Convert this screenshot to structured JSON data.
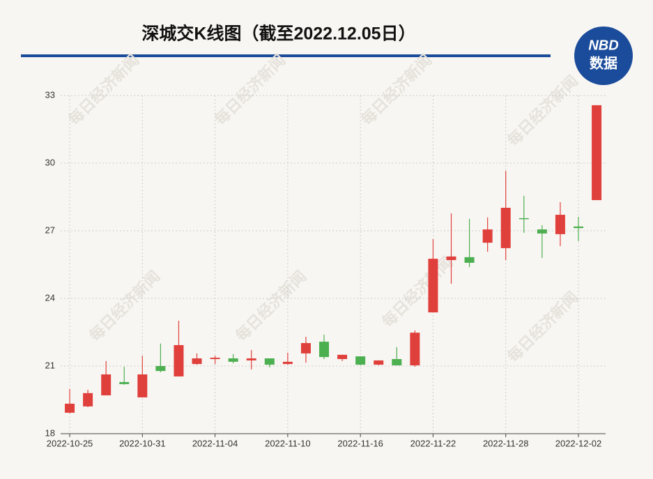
{
  "chart_data": {
    "type": "candlestick",
    "title": "深城交K线图（截至2022.12.05日）",
    "logo": {
      "top": "NBD",
      "bottom": "数据"
    },
    "watermark": "每日经济新闻",
    "categories": [
      "2022-10-25",
      null,
      null,
      null,
      "2022-10-31",
      null,
      null,
      null,
      "2022-11-04",
      null,
      null,
      null,
      "2022-11-10",
      null,
      null,
      null,
      "2022-11-16",
      null,
      null,
      null,
      "2022-11-22",
      null,
      null,
      null,
      "2022-11-28",
      null,
      null,
      null,
      "2022-12-02",
      null
    ],
    "open": [
      18.93,
      19.21,
      19.7,
      20.29,
      19.61,
      21.0,
      20.54,
      21.09,
      21.31,
      21.34,
      21.25,
      21.34,
      21.09,
      21.56,
      22.08,
      21.31,
      21.43,
      21.06,
      21.31,
      21.03,
      23.38,
      25.7,
      25.83,
      26.47,
      26.23,
      27.56,
      27.06,
      26.85,
      27.19,
      28.36
    ],
    "high": [
      19.98,
      19.95,
      21.22,
      20.97,
      21.46,
      22.0,
      23.01,
      21.56,
      21.46,
      21.53,
      21.71,
      21.34,
      21.59,
      22.3,
      22.39,
      21.5,
      21.43,
      21.25,
      21.84,
      22.58,
      26.63,
      27.77,
      27.53,
      27.59,
      29.66,
      28.55,
      27.25,
      28.27,
      27.62,
      32.57
    ],
    "low": [
      18.9,
      19.18,
      19.7,
      20.17,
      19.61,
      20.72,
      20.54,
      21.06,
      21.09,
      21.12,
      20.85,
      20.94,
      21.06,
      21.15,
      21.31,
      21.22,
      21.03,
      21.03,
      21.03,
      20.97,
      23.38,
      24.65,
      25.39,
      26.07,
      25.7,
      26.91,
      25.79,
      26.32,
      26.54,
      28.36
    ],
    "close": [
      19.33,
      19.8,
      20.63,
      20.2,
      20.63,
      20.78,
      21.93,
      21.34,
      21.37,
      21.19,
      21.34,
      21.06,
      21.19,
      22.02,
      21.4,
      21.5,
      21.06,
      21.25,
      21.03,
      22.48,
      25.76,
      25.86,
      25.58,
      27.06,
      28.02,
      27.53,
      26.88,
      27.71,
      27.12,
      32.57
    ],
    "up_color": "#e0403c",
    "down_color": "#4caf50",
    "ylim": [
      18,
      33
    ],
    "yticks": [
      18,
      21,
      24,
      27,
      30,
      33
    ],
    "grid": true
  }
}
